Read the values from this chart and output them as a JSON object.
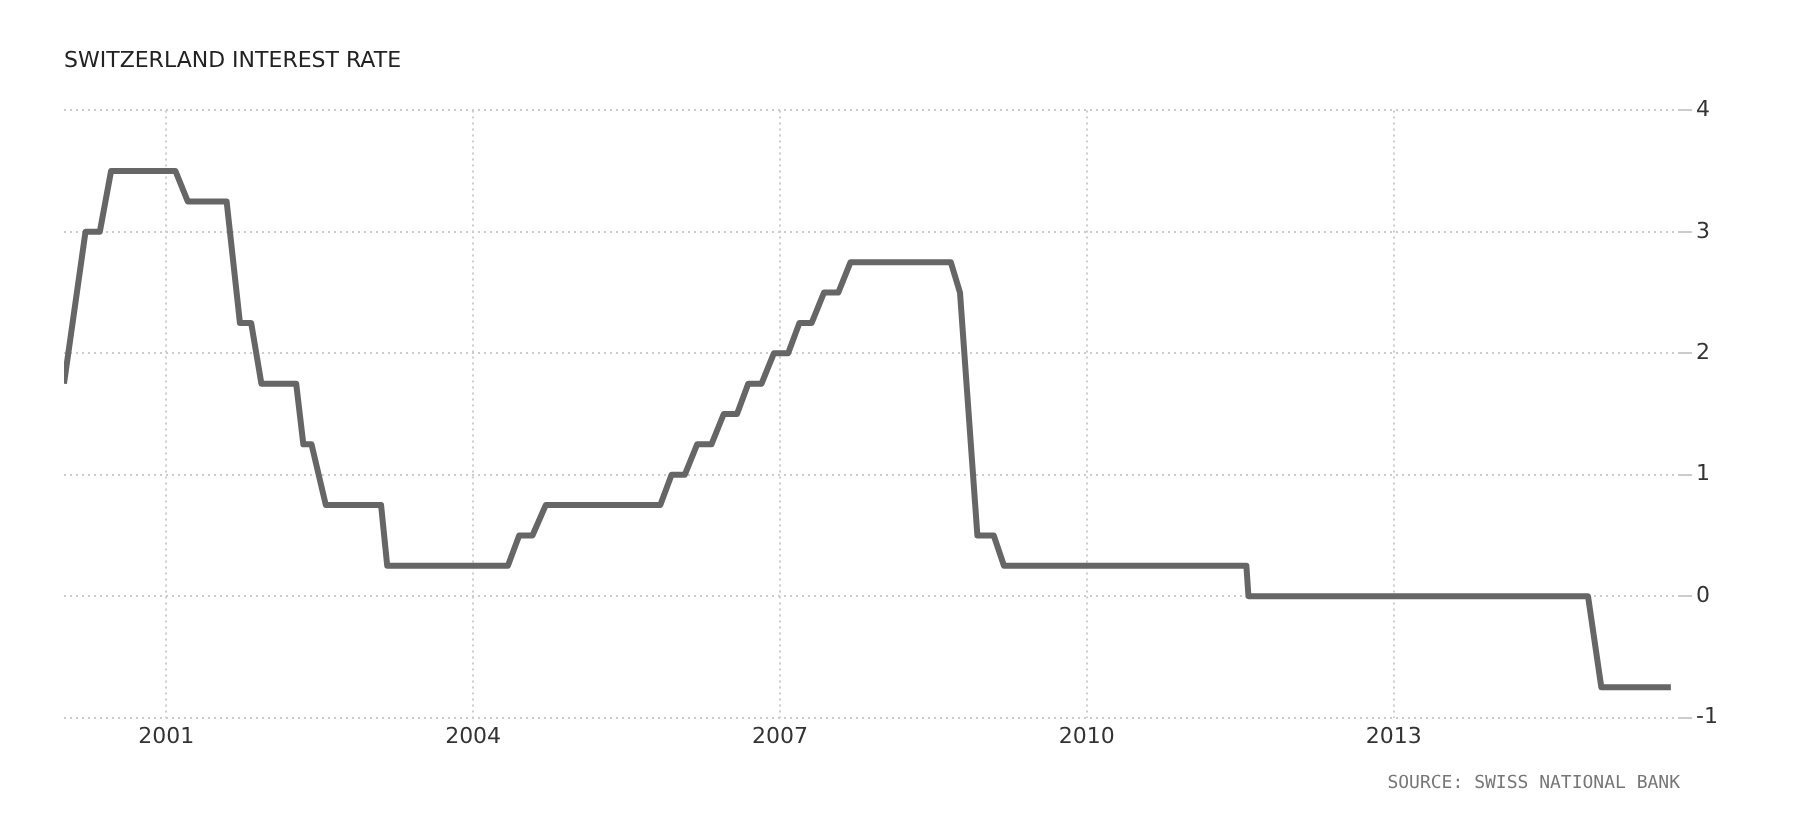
{
  "chart_data": {
    "type": "line",
    "title": "SWITZERLAND INTEREST RATE",
    "annotations": [
      "SOURCE: SWISS NATIONAL BANK"
    ],
    "x": [
      2000.0,
      2000.21,
      2000.35,
      2000.46,
      2001.09,
      2001.21,
      2001.59,
      2001.72,
      2001.83,
      2001.93,
      2002.27,
      2002.34,
      2002.42,
      2002.56,
      2003.1,
      2003.16,
      2004.34,
      2004.45,
      2004.58,
      2004.71,
      2005.83,
      2005.94,
      2006.07,
      2006.19,
      2006.33,
      2006.45,
      2006.58,
      2006.69,
      2006.82,
      2006.94,
      2007.08,
      2007.19,
      2007.31,
      2007.43,
      2007.57,
      2007.69,
      2008.67,
      2008.76,
      2008.93,
      2009.09,
      2009.19,
      2011.56,
      2011.58,
      2014.9,
      2015.03,
      2015.71
    ],
    "series": [
      {
        "color": "#666666",
        "values": [
          1.75,
          3.0,
          3.0,
          3.5,
          3.5,
          3.25,
          3.25,
          2.25,
          2.25,
          1.75,
          1.75,
          1.25,
          1.25,
          0.75,
          0.75,
          0.25,
          0.25,
          0.5,
          0.5,
          0.75,
          0.75,
          1.0,
          1.0,
          1.25,
          1.25,
          1.5,
          1.5,
          1.75,
          1.75,
          2.0,
          2.0,
          2.25,
          2.25,
          2.5,
          2.5,
          2.75,
          2.75,
          2.5,
          0.5,
          0.5,
          0.25,
          0.25,
          0.0,
          0.0,
          -0.75,
          -0.75
        ]
      }
    ],
    "xlim": [
      2000,
      2015.8
    ],
    "xticks": [
      2001,
      2004,
      2007,
      2010,
      2013
    ],
    "ylim": [
      -1,
      4
    ],
    "yticks": [
      -1,
      0,
      1,
      2,
      3,
      4
    ],
    "grid": true,
    "legend": false,
    "marker": "none",
    "line_style": "solid"
  }
}
